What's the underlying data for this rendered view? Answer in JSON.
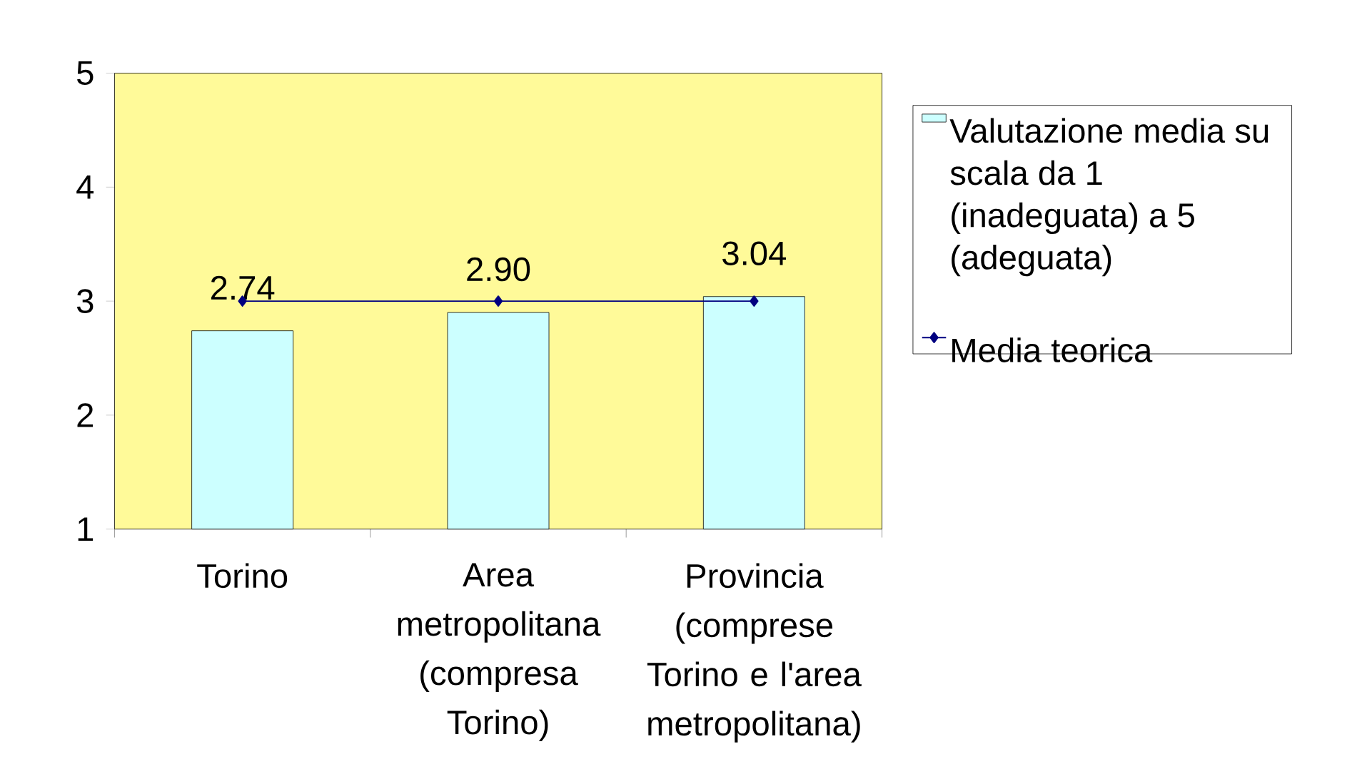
{
  "chart_data": {
    "type": "bar",
    "categories": [
      "Torino",
      "Area metropolitana (compresa Torino)",
      "Provincia (comprese Torino e l'area metropolitana)"
    ],
    "series": [
      {
        "name": "Valutazione media su scala da 1 (inadeguata) a 5 (adeguata)",
        "color": "#ccffff",
        "values": [
          2.74,
          2.9,
          3.04
        ],
        "value_labels": [
          "2.74",
          "2.90",
          "3.04"
        ]
      },
      {
        "name": "Media teorica",
        "type": "line",
        "color": "#000080",
        "marker": "diamond",
        "values": [
          3,
          3,
          3
        ]
      }
    ],
    "ylim": [
      1,
      5
    ],
    "yticks": [
      1,
      2,
      3,
      4,
      5
    ],
    "grid": false,
    "legend": "right"
  }
}
